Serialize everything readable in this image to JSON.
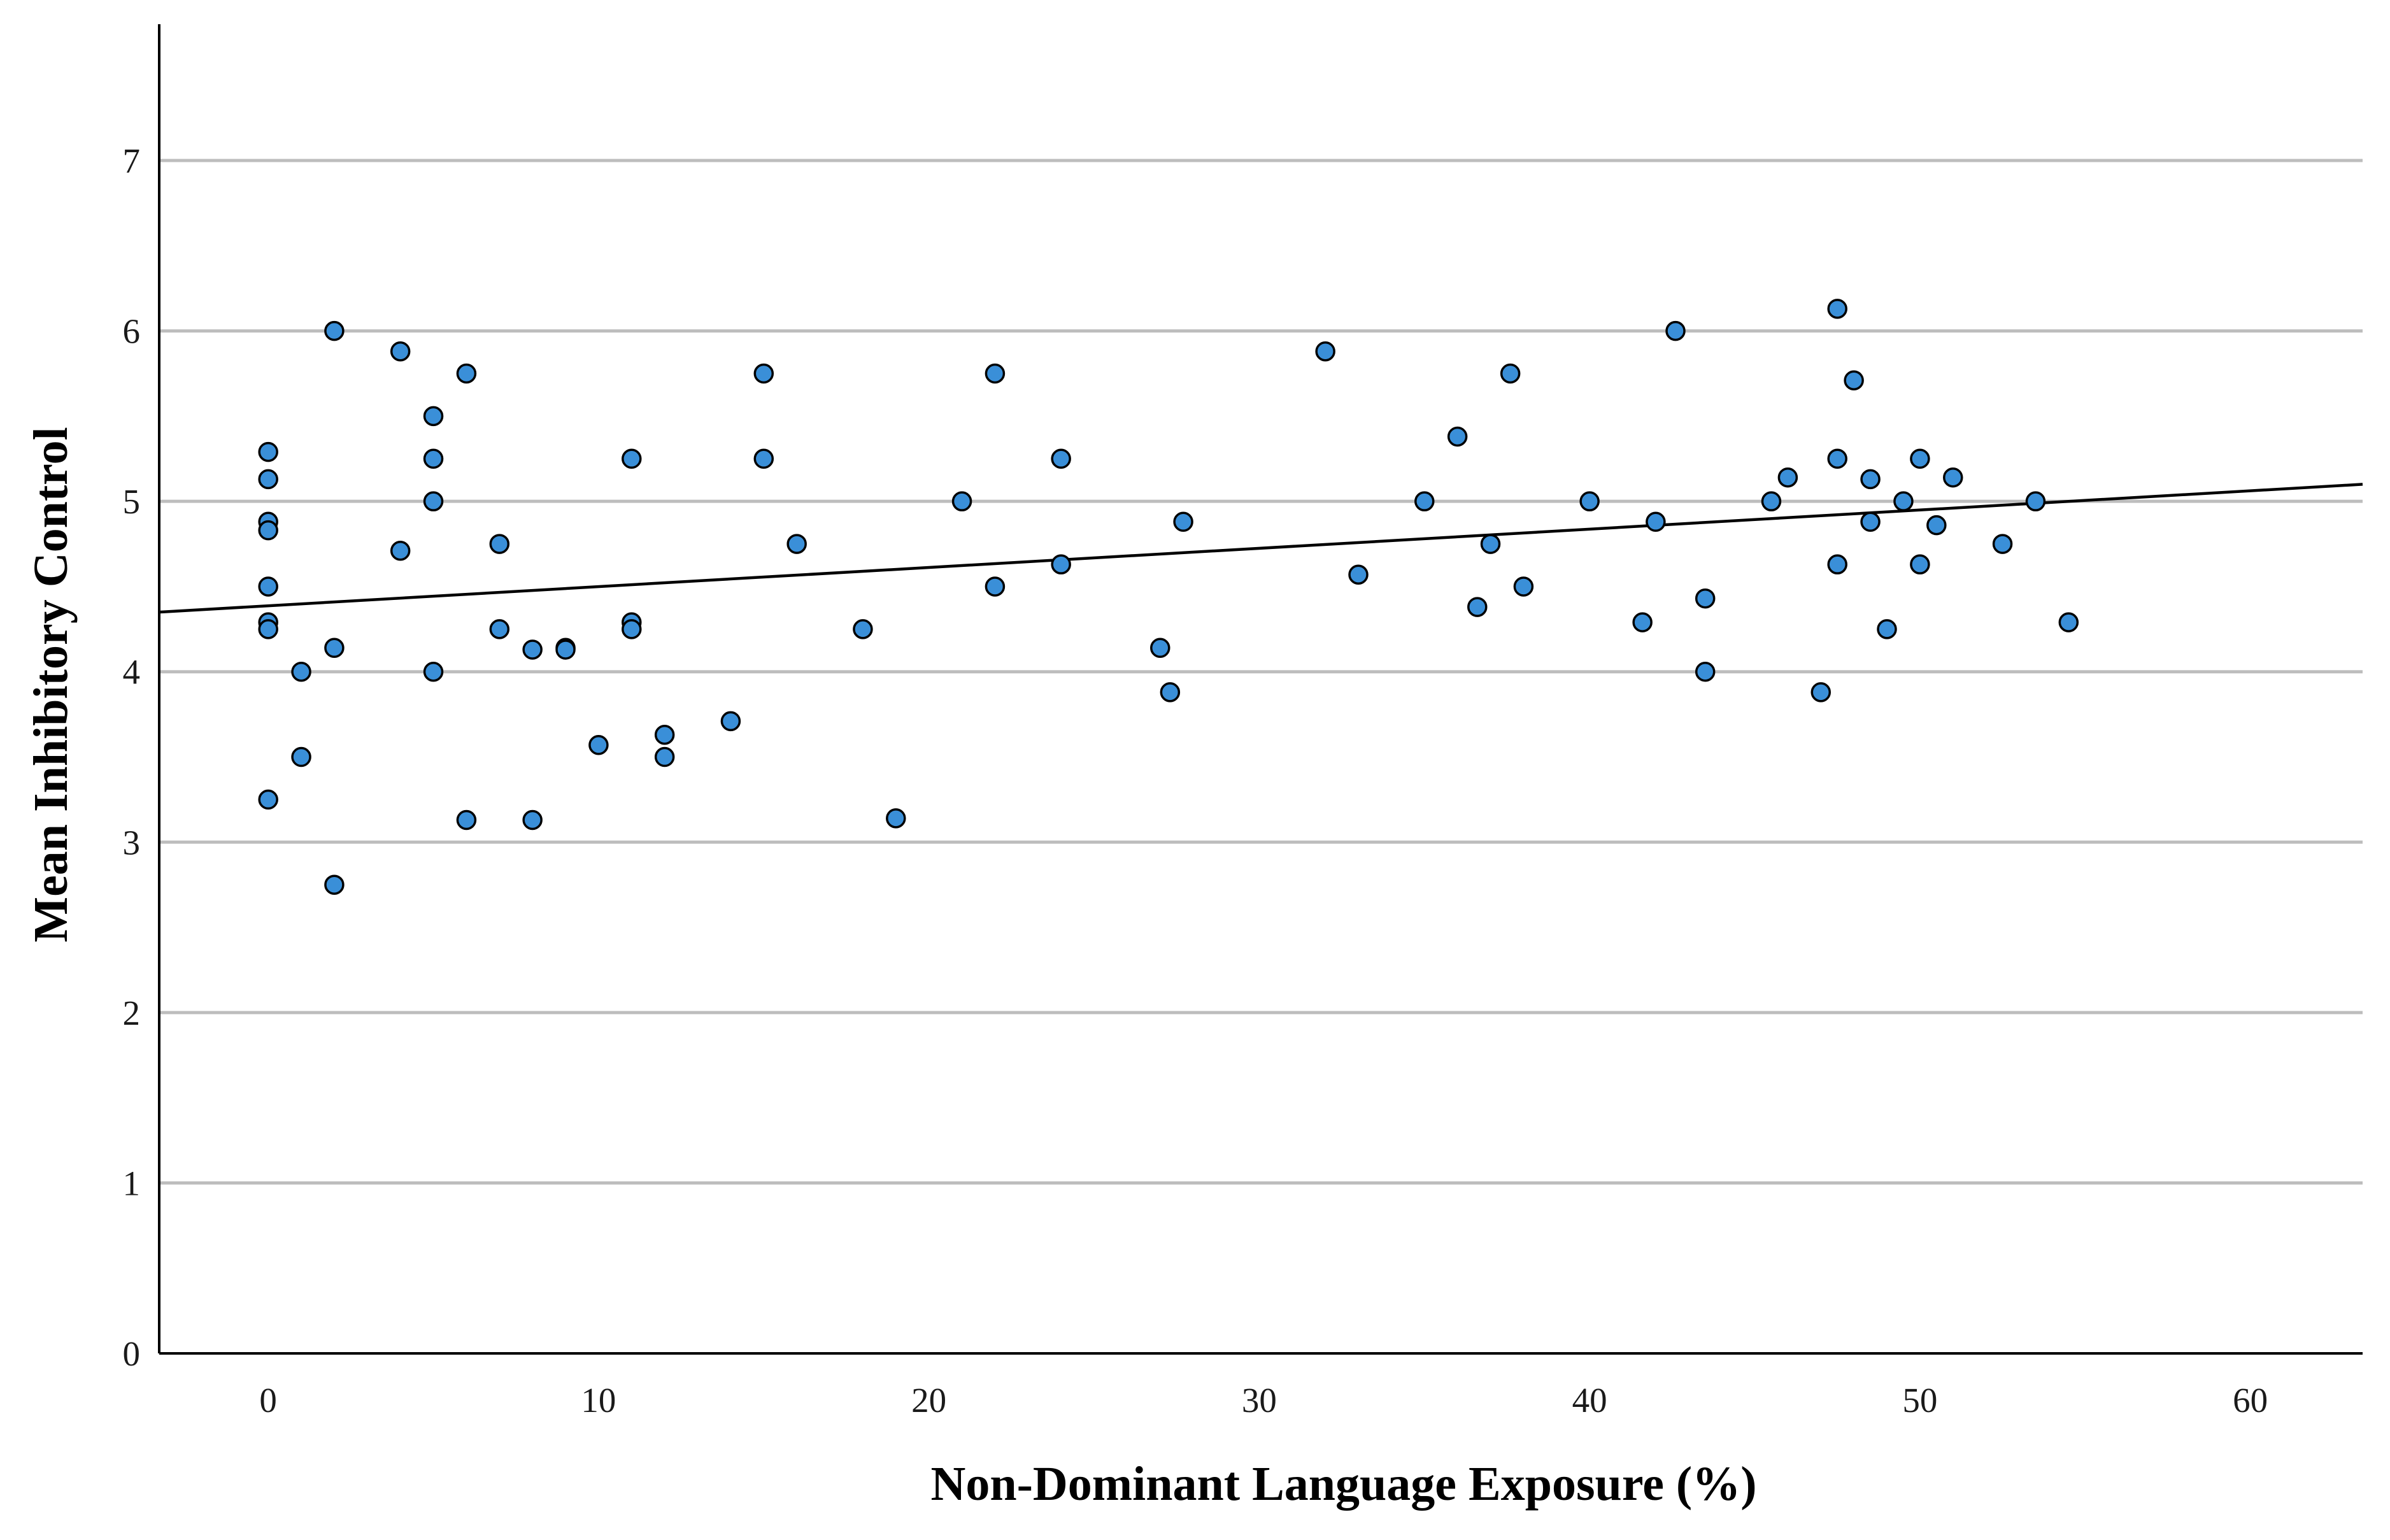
{
  "chart_data": {
    "type": "scatter",
    "title": "",
    "xlabel": "Non-Dominant Language Exposure (%)",
    "ylabel": "Mean Inhibitory Control",
    "xlim": [
      -3.3,
      63.4
    ],
    "ylim": [
      0,
      7.8
    ],
    "xticks": [
      "0",
      "10",
      "20",
      "30",
      "40",
      "50",
      "60"
    ],
    "yticks": [
      "0",
      "1",
      "2",
      "3",
      "4",
      "5",
      "6",
      "7"
    ],
    "grid": "horizontal",
    "point_color": "#3a8fd8",
    "trendline": {
      "x": [
        -3.3,
        63.4
      ],
      "y": [
        4.35,
        5.1
      ]
    },
    "points": [
      {
        "x": 0,
        "y": 5.29
      },
      {
        "x": 0,
        "y": 5.13
      },
      {
        "x": 0,
        "y": 4.88
      },
      {
        "x": 0,
        "y": 4.83
      },
      {
        "x": 0,
        "y": 4.5
      },
      {
        "x": 0,
        "y": 4.29
      },
      {
        "x": 0,
        "y": 4.25
      },
      {
        "x": 0,
        "y": 3.25
      },
      {
        "x": 1,
        "y": 4.0
      },
      {
        "x": 1,
        "y": 3.5
      },
      {
        "x": 2,
        "y": 6.0
      },
      {
        "x": 2,
        "y": 4.14
      },
      {
        "x": 2,
        "y": 2.75
      },
      {
        "x": 4,
        "y": 5.88
      },
      {
        "x": 4,
        "y": 4.71
      },
      {
        "x": 5,
        "y": 5.5
      },
      {
        "x": 5,
        "y": 5.25
      },
      {
        "x": 5,
        "y": 5.0
      },
      {
        "x": 5,
        "y": 4.0
      },
      {
        "x": 6,
        "y": 5.75
      },
      {
        "x": 6,
        "y": 3.13
      },
      {
        "x": 7,
        "y": 4.75
      },
      {
        "x": 7,
        "y": 4.25
      },
      {
        "x": 8,
        "y": 4.13
      },
      {
        "x": 8,
        "y": 3.13
      },
      {
        "x": 9,
        "y": 4.14
      },
      {
        "x": 9,
        "y": 4.13
      },
      {
        "x": 10,
        "y": 3.57
      },
      {
        "x": 11,
        "y": 5.25
      },
      {
        "x": 11,
        "y": 4.29
      },
      {
        "x": 11,
        "y": 4.25
      },
      {
        "x": 12,
        "y": 3.63
      },
      {
        "x": 12,
        "y": 3.5
      },
      {
        "x": 14,
        "y": 3.71
      },
      {
        "x": 15,
        "y": 5.75
      },
      {
        "x": 15,
        "y": 5.25
      },
      {
        "x": 16,
        "y": 4.75
      },
      {
        "x": 18,
        "y": 4.25
      },
      {
        "x": 19,
        "y": 3.14
      },
      {
        "x": 21,
        "y": 5.0
      },
      {
        "x": 22,
        "y": 5.75
      },
      {
        "x": 22,
        "y": 4.5
      },
      {
        "x": 24,
        "y": 5.25
      },
      {
        "x": 24,
        "y": 4.63
      },
      {
        "x": 27,
        "y": 4.14
      },
      {
        "x": 27.3,
        "y": 3.88
      },
      {
        "x": 27.7,
        "y": 4.88
      },
      {
        "x": 32,
        "y": 5.88
      },
      {
        "x": 33,
        "y": 4.57
      },
      {
        "x": 35,
        "y": 5.0
      },
      {
        "x": 36,
        "y": 5.38
      },
      {
        "x": 36.6,
        "y": 4.38
      },
      {
        "x": 37,
        "y": 4.75
      },
      {
        "x": 37.6,
        "y": 5.75
      },
      {
        "x": 38,
        "y": 4.5
      },
      {
        "x": 40,
        "y": 5.0
      },
      {
        "x": 41.6,
        "y": 4.29
      },
      {
        "x": 42,
        "y": 4.88
      },
      {
        "x": 42.6,
        "y": 6.0
      },
      {
        "x": 43.5,
        "y": 4.43
      },
      {
        "x": 43.5,
        "y": 4.0
      },
      {
        "x": 45.5,
        "y": 5.0
      },
      {
        "x": 46,
        "y": 5.14
      },
      {
        "x": 47,
        "y": 3.88
      },
      {
        "x": 47.5,
        "y": 6.13
      },
      {
        "x": 47.5,
        "y": 5.25
      },
      {
        "x": 47.5,
        "y": 4.63
      },
      {
        "x": 48,
        "y": 5.71
      },
      {
        "x": 48.5,
        "y": 5.13
      },
      {
        "x": 48.5,
        "y": 4.88
      },
      {
        "x": 49,
        "y": 4.25
      },
      {
        "x": 49.5,
        "y": 5.0
      },
      {
        "x": 50,
        "y": 5.25
      },
      {
        "x": 50,
        "y": 4.63
      },
      {
        "x": 50.5,
        "y": 4.86
      },
      {
        "x": 51,
        "y": 5.14
      },
      {
        "x": 52.5,
        "y": 4.75
      },
      {
        "x": 53.5,
        "y": 5.0
      },
      {
        "x": 54.5,
        "y": 4.29
      }
    ]
  }
}
